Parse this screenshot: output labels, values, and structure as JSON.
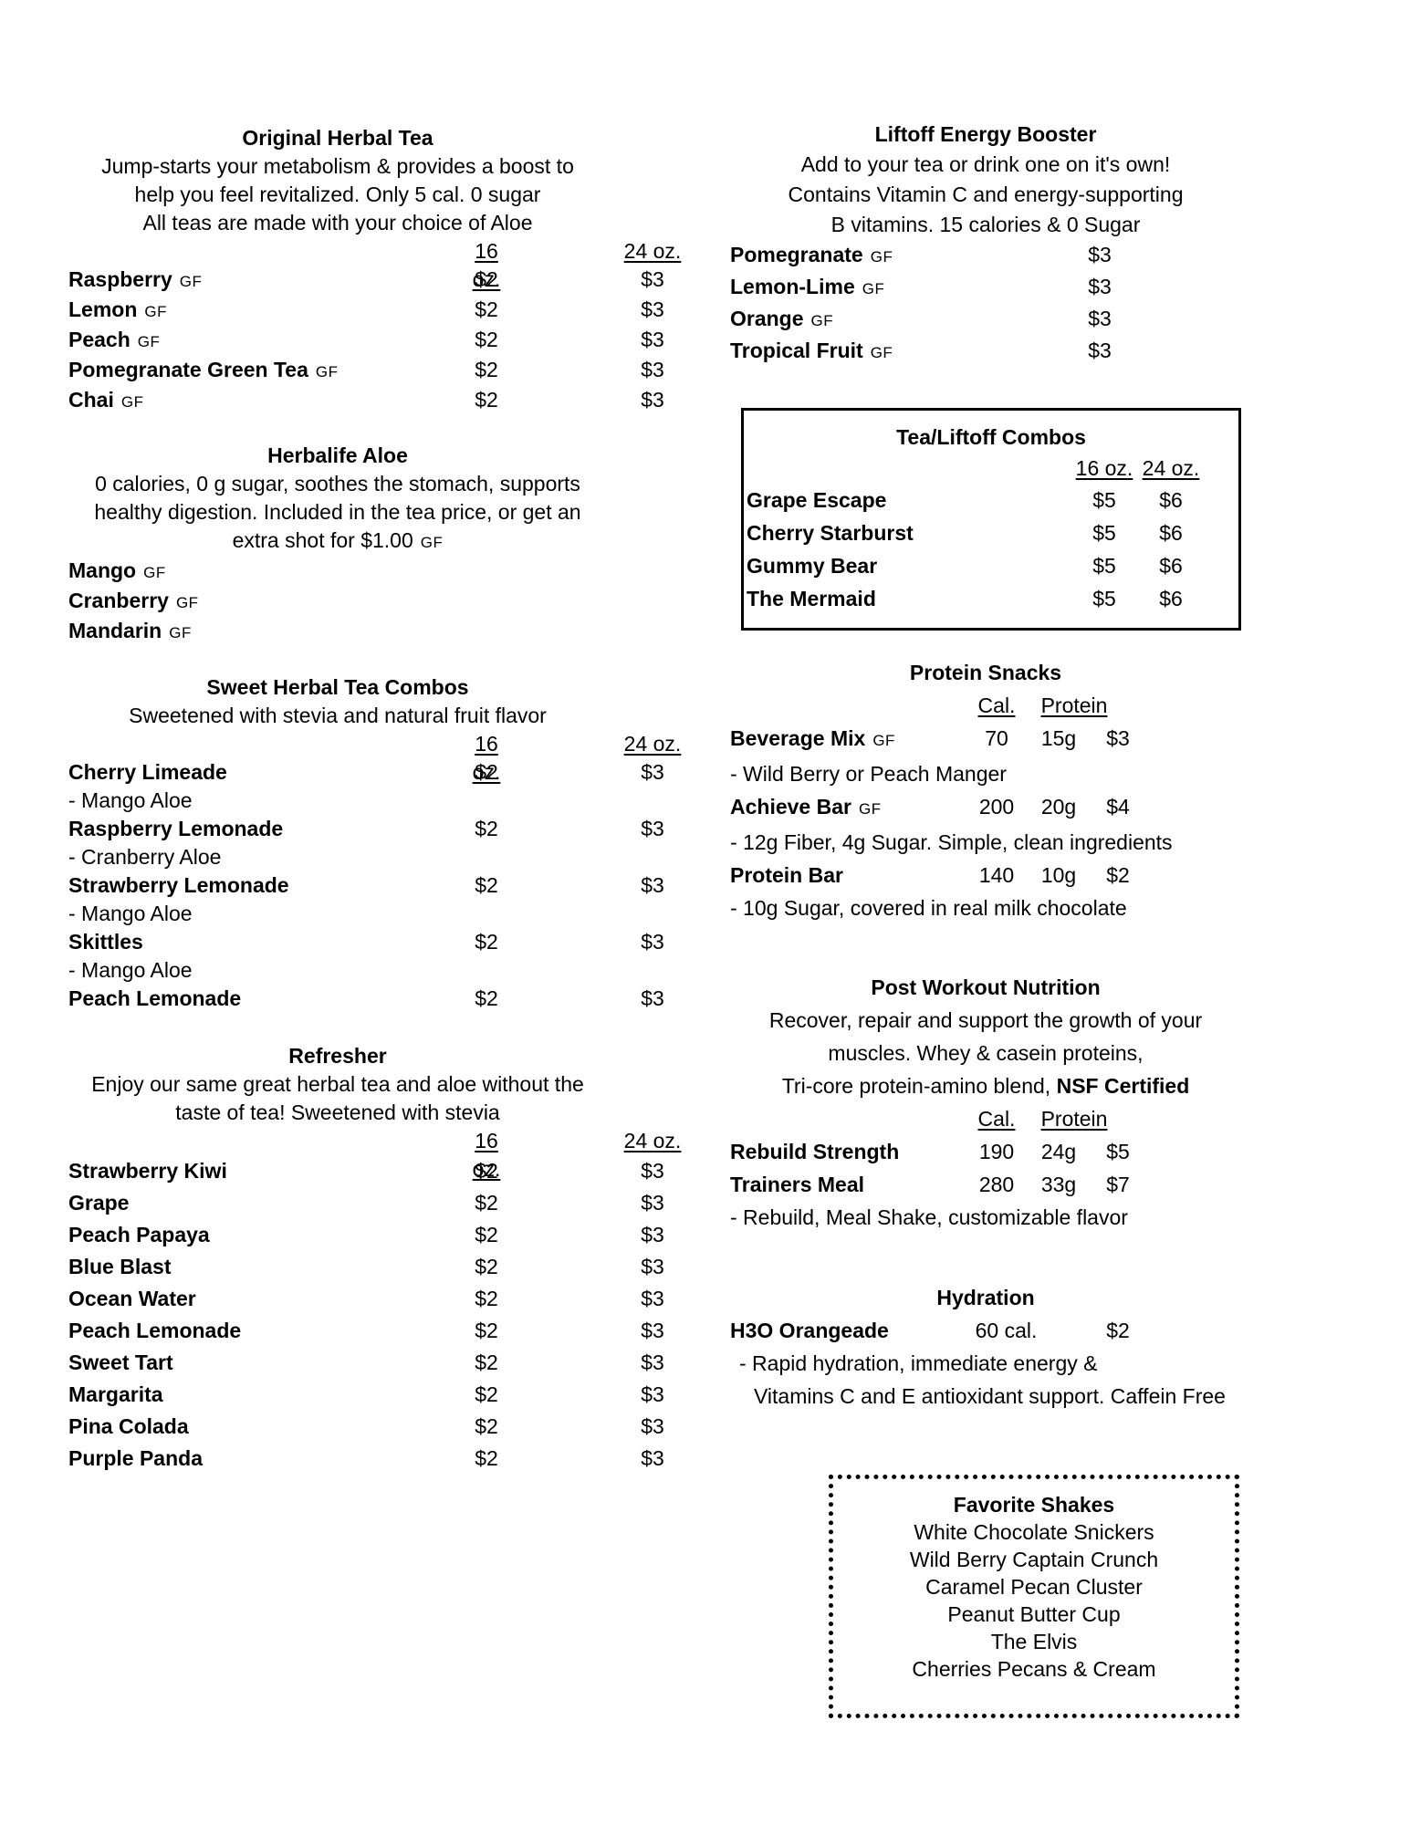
{
  "page": {
    "background": "#ffffff",
    "text_color": "#000000"
  },
  "left": {
    "original_herbal_tea": {
      "title": "Original Herbal Tea",
      "description": [
        "Jump-starts your metabolism & provides a boost to",
        "help you feel revitalized. Only 5 cal. 0 sugar",
        "All teas are made with your choice of Aloe"
      ],
      "size_headers": [
        "16 oz.",
        "24 oz."
      ],
      "items": [
        {
          "name": "Raspberry",
          "gf": "GF",
          "p16": "$2",
          "p24": "$3"
        },
        {
          "name": "Lemon",
          "gf": "GF",
          "p16": "$2",
          "p24": "$3"
        },
        {
          "name": "Peach",
          "gf": "GF",
          "p16": "$2",
          "p24": "$3"
        },
        {
          "name": "Pomegranate Green Tea",
          "gf": "GF",
          "p16": "$2",
          "p24": "$3"
        },
        {
          "name": "Chai",
          "gf": "GF",
          "p16": "$2",
          "p24": "$3"
        }
      ]
    },
    "herbalife_aloe": {
      "title": "Herbalife Aloe",
      "description": [
        "0 calories, 0 g sugar, soothes the stomach, supports",
        "healthy digestion. Included in the tea price, or get an",
        "extra shot for $1.00"
      ],
      "description_gf": "GF",
      "items": [
        {
          "name": "Mango",
          "gf": "GF"
        },
        {
          "name": "Cranberry",
          "gf": "GF"
        },
        {
          "name": "Mandarin",
          "gf": "GF"
        }
      ]
    },
    "sweet_combos": {
      "title": "Sweet Herbal Tea Combos",
      "description": [
        "Sweetened with stevia and natural fruit flavor"
      ],
      "size_headers": [
        "16 oz.",
        "24 oz."
      ],
      "items": [
        {
          "name": "Cherry Limeade",
          "p16": "$2",
          "p24": "$3",
          "sub": "- Mango Aloe"
        },
        {
          "name": "Raspberry Lemonade",
          "p16": "$2",
          "p24": "$3",
          "sub": "- Cranberry Aloe"
        },
        {
          "name": "Strawberry Lemonade",
          "p16": "$2",
          "p24": "$3",
          "sub": "- Mango Aloe"
        },
        {
          "name": "Skittles",
          "p16": "$2",
          "p24": "$3",
          "sub": "- Mango Aloe"
        },
        {
          "name": "Peach Lemonade",
          "p16": "$2",
          "p24": "$3"
        }
      ]
    },
    "refresher": {
      "title": "Refresher",
      "description": [
        "Enjoy our same great herbal tea and aloe without the",
        "taste of tea! Sweetened with stevia"
      ],
      "size_headers": [
        "16 oz.",
        "24 oz."
      ],
      "items": [
        {
          "name": "Strawberry Kiwi",
          "p16": "$2",
          "p24": "$3"
        },
        {
          "name": "Grape",
          "p16": "$2",
          "p24": "$3"
        },
        {
          "name": "Peach Papaya",
          "p16": "$2",
          "p24": "$3"
        },
        {
          "name": "Blue Blast",
          "p16": "$2",
          "p24": "$3"
        },
        {
          "name": "Ocean Water",
          "p16": "$2",
          "p24": "$3"
        },
        {
          "name": "Peach Lemonade",
          "p16": "$2",
          "p24": "$3"
        },
        {
          "name": "Sweet Tart",
          "p16": "$2",
          "p24": "$3"
        },
        {
          "name": "Margarita",
          "p16": "$2",
          "p24": "$3"
        },
        {
          "name": "Pina Colada",
          "p16": "$2",
          "p24": "$3"
        },
        {
          "name": "Purple Panda",
          "p16": "$2",
          "p24": "$3"
        }
      ]
    }
  },
  "right": {
    "liftoff": {
      "title": "Liftoff Energy Booster",
      "description": [
        "Add to your tea or drink one on it's own!",
        "Contains Vitamin C and energy-supporting",
        "B vitamins. 15 calories & 0 Sugar"
      ],
      "items": [
        {
          "name": "Pomegranate",
          "gf": "GF",
          "price": "$3"
        },
        {
          "name": "Lemon-Lime",
          "gf": "GF",
          "price": "$3"
        },
        {
          "name": "Orange",
          "gf": "GF",
          "price": "$3"
        },
        {
          "name": "Tropical Fruit",
          "gf": "GF",
          "price": "$3"
        }
      ]
    },
    "combos_box": {
      "title": "Tea/Liftoff Combos",
      "size_headers": [
        "16 oz.",
        "24 oz."
      ],
      "items": [
        {
          "name": "Grape Escape",
          "p16": "$5",
          "p24": "$6"
        },
        {
          "name": "Cherry Starburst",
          "p16": "$5",
          "p24": "$6"
        },
        {
          "name": "Gummy Bear",
          "p16": "$5",
          "p24": "$6"
        },
        {
          "name": "The Mermaid",
          "p16": "$5",
          "p24": "$6"
        }
      ]
    },
    "protein_snacks": {
      "title": "Protein Snacks",
      "col_headers": [
        "Cal.",
        "Protein"
      ],
      "items": [
        {
          "name": "Beverage Mix",
          "gf": "GF",
          "cal": "70",
          "protein": "15g",
          "price": "$3",
          "sub": "- Wild Berry or Peach Manger"
        },
        {
          "name": "Achieve Bar",
          "gf": "GF",
          "cal": "200",
          "protein": "20g",
          "price": "$4",
          "sub": "- 12g Fiber, 4g Sugar. Simple, clean ingredients"
        },
        {
          "name": "Protein Bar",
          "cal": "140",
          "protein": "10g",
          "price": "$2",
          "sub": "- 10g Sugar, covered in real milk chocolate"
        }
      ]
    },
    "post_workout": {
      "title": "Post Workout Nutrition",
      "description": [
        "Recover, repair and support the growth of your",
        "muscles. Whey & casein proteins,"
      ],
      "desc3_regular": "Tri-core protein-amino blend, ",
      "desc3_bold": "NSF Certified",
      "col_headers": [
        "Cal.",
        "Protein"
      ],
      "items": [
        {
          "name": "Rebuild Strength",
          "cal": "190",
          "protein": "24g",
          "price": "$5"
        },
        {
          "name": "Trainers Meal",
          "cal": "280",
          "protein": "33g",
          "price": "$7"
        }
      ],
      "footnote": "- Rebuild, Meal Shake, customizable flavor"
    },
    "hydration": {
      "title": "Hydration",
      "item": {
        "name": "H3O Orangeade",
        "cal": "60 cal.",
        "price": "$2"
      },
      "description": [
        "- Rapid hydration, immediate energy &",
        "Vitamins C and E antioxidant support. Caffein Free"
      ]
    },
    "favorite_shakes": {
      "title": "Favorite Shakes",
      "items": [
        "White Chocolate Snickers",
        "Wild Berry Captain Crunch",
        "Caramel Pecan Cluster",
        "Peanut Butter Cup",
        "The Elvis",
        "Cherries Pecans & Cream"
      ]
    }
  }
}
